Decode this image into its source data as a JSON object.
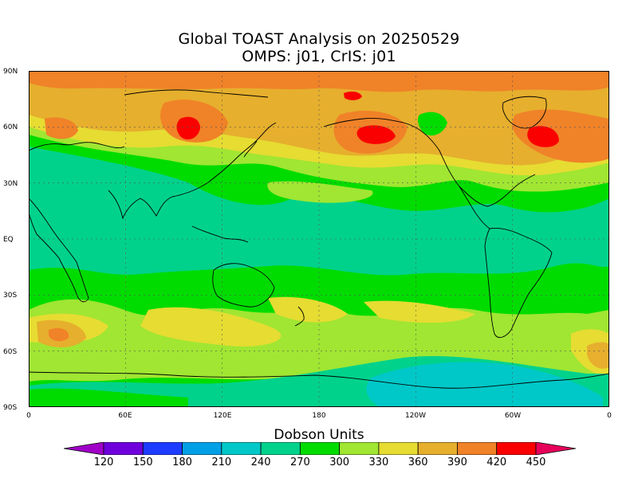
{
  "title_line1": "Global TOAST Analysis on 20250529",
  "title_line2": "OMPS: j01, CrIS: j01",
  "lat_labels": [
    "90N",
    "60N",
    "30N",
    "EQ",
    "30S",
    "60S",
    "90S"
  ],
  "lon_labels": [
    "0",
    "60E",
    "120E",
    "180",
    "120W",
    "60W",
    "0"
  ],
  "colorbar": {
    "title": "Dobson Units",
    "labels": [
      "120",
      "150",
      "180",
      "210",
      "240",
      "270",
      "300",
      "330",
      "360",
      "390",
      "420",
      "450"
    ],
    "colors": [
      "#a000c8",
      "#6e00dc",
      "#1e3cff",
      "#00a0e6",
      "#00c8c8",
      "#00d28c",
      "#00dc00",
      "#a0e632",
      "#e6dc32",
      "#e6af2d",
      "#f08228",
      "#fa0000",
      "#e6005a"
    ]
  },
  "level_colors": {
    "270": "#00d28c",
    "300": "#00dc00",
    "330": "#a0e632",
    "360": "#e6dc32",
    "390": "#e6af2d",
    "420": "#f08228",
    "450": "#fa0000",
    "240": "#00c8c8"
  }
}
